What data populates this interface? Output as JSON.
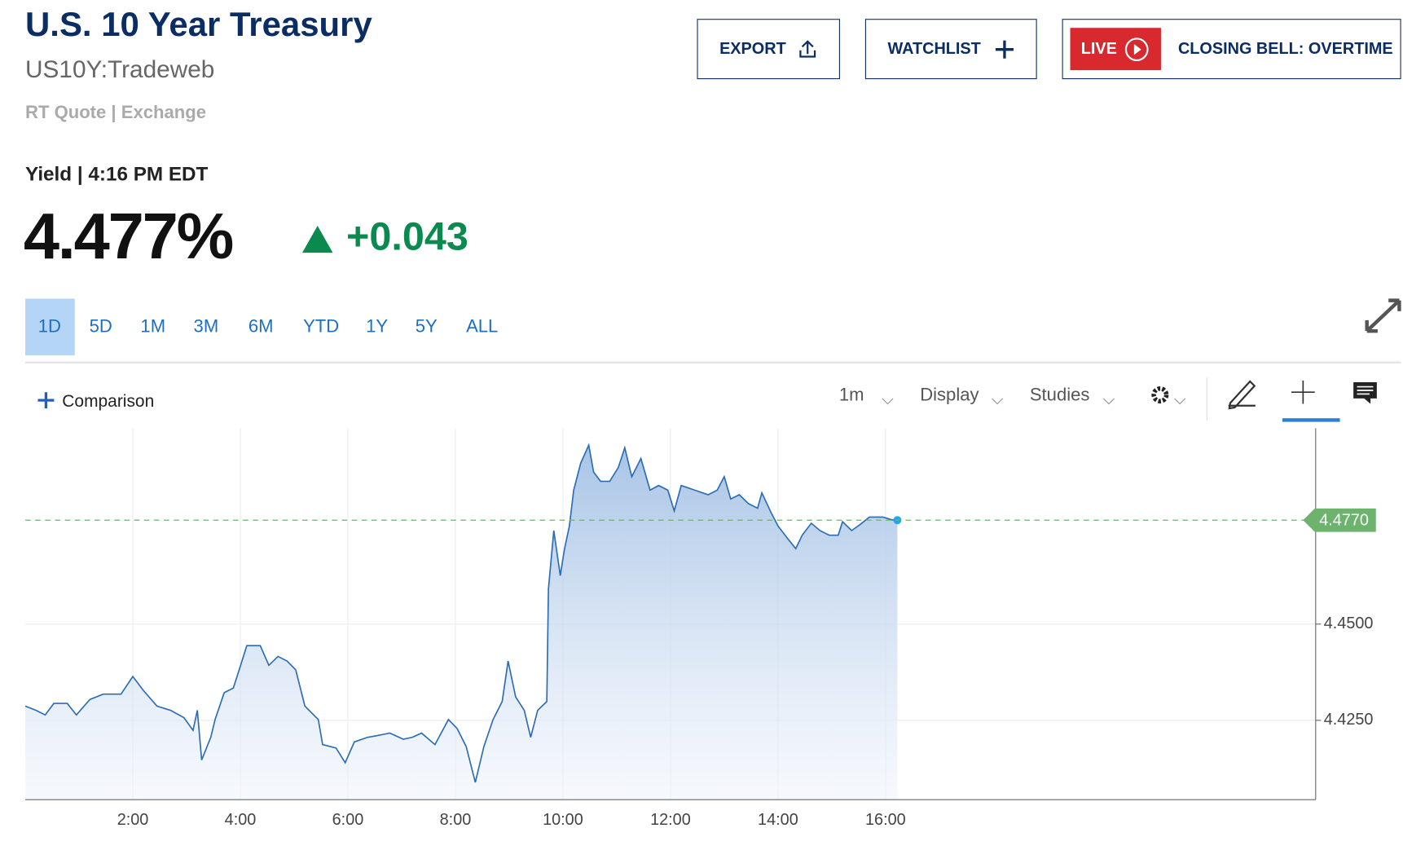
{
  "header": {
    "title": "U.S. 10 Year Treasury",
    "symbol": "US10Y:Tradeweb",
    "quote_type": "RT Quote | Exchange",
    "time_line": "Yield | 4:16 PM EDT",
    "price": "4.477%",
    "change": "+0.043"
  },
  "buttons": [
    "EXPORT",
    "WATCHLIST",
    "LIVE",
    "CLOSING BELL: OVERTIME"
  ],
  "ranges": {
    "items": [
      "1D",
      "5D",
      "1M",
      "3M",
      "6M",
      "YTD",
      "1Y",
      "5Y",
      "ALL"
    ],
    "selected": "1D"
  },
  "toolbar": {
    "comparison": "Comparison",
    "interval": "1m",
    "display": "Display",
    "studies": "Studies"
  },
  "chart_data": {
    "type": "area",
    "xlim": [
      0,
      24
    ],
    "ylim": [
      4.4044,
      4.5009
    ],
    "xticks": [
      {
        "value": 2,
        "label": "2:00"
      },
      {
        "value": 4,
        "label": "4:00"
      },
      {
        "value": 6,
        "label": "6:00"
      },
      {
        "value": 8,
        "label": "8:00"
      },
      {
        "value": 10,
        "label": "10:00"
      },
      {
        "value": 12,
        "label": "12:00"
      },
      {
        "value": 14,
        "label": "14:00"
      },
      {
        "value": 16,
        "label": "16:00"
      }
    ],
    "yticks": [
      {
        "value": 4.45,
        "label": "4.4500"
      },
      {
        "value": 4.425,
        "label": "4.4250"
      }
    ],
    "grid": true,
    "current": {
      "value": 4.477,
      "label": "4.4770",
      "color": "#6db36d"
    },
    "x": [
      0,
      0.2,
      0.37,
      0.53,
      0.78,
      0.95,
      1.2,
      1.45,
      1.78,
      2,
      2.2,
      2.45,
      2.7,
      2.95,
      3.12,
      3.2,
      3.28,
      3.45,
      3.53,
      3.7,
      3.87,
      4.03,
      4.12,
      4.37,
      4.53,
      4.7,
      4.87,
      5.03,
      5.2,
      5.45,
      5.53,
      5.78,
      5.95,
      6.12,
      6.37,
      6.53,
      6.78,
      7.03,
      7.2,
      7.37,
      7.62,
      7.87,
      8.03,
      8.2,
      8.37,
      8.53,
      8.7,
      8.87,
      8.98,
      9.12,
      9.28,
      9.4,
      9.53,
      9.7,
      9.73,
      9.83,
      9.95,
      10.03,
      10.12,
      10.2,
      10.33,
      10.48,
      10.57,
      10.7,
      10.87,
      11.03,
      11.15,
      11.28,
      11.45,
      11.62,
      11.78,
      11.95,
      12.07,
      12.2,
      12.45,
      12.7,
      12.87,
      13,
      13.12,
      13.28,
      13.45,
      13.62,
      13.7,
      13.87,
      14,
      14.17,
      14.33,
      14.45,
      14.62,
      14.78,
      14.95,
      15.12,
      15.2,
      15.37,
      15.53,
      15.7,
      15.95,
      16.12,
      16.22
    ],
    "series": [
      {
        "color": "#2b6cb3",
        "values": [
          4.4287,
          4.4276,
          4.4264,
          4.4294,
          4.4294,
          4.4264,
          4.4304,
          4.4318,
          4.4318,
          4.4364,
          4.4327,
          4.4287,
          4.4276,
          4.4257,
          4.4224,
          4.4276,
          4.4147,
          4.4206,
          4.4252,
          4.4322,
          4.4334,
          4.4404,
          4.4444,
          4.4444,
          4.4393,
          4.4416,
          4.4404,
          4.4381,
          4.4287,
          4.4252,
          4.4187,
          4.4178,
          4.414,
          4.4194,
          4.4206,
          4.421,
          4.4217,
          4.4201,
          4.4206,
          4.4217,
          4.4187,
          4.4252,
          4.4229,
          4.4182,
          4.4089,
          4.4182,
          4.4252,
          4.4299,
          4.4404,
          4.4311,
          4.4276,
          4.4206,
          4.4276,
          4.4299,
          4.4591,
          4.4743,
          4.4626,
          4.4696,
          4.4755,
          4.4848,
          4.4918,
          4.4965,
          4.4895,
          4.4871,
          4.4871,
          4.4907,
          4.4958,
          4.4883,
          4.493,
          4.4848,
          4.486,
          4.4848,
          4.4794,
          4.486,
          4.4848,
          4.4836,
          4.4848,
          4.4883,
          4.4825,
          4.4836,
          4.4813,
          4.4801,
          4.4841,
          4.479,
          4.4755,
          4.4724,
          4.4696,
          4.4731,
          4.4762,
          4.4743,
          4.4731,
          4.4731,
          4.4766,
          4.4743,
          4.4759,
          4.4778,
          4.4778,
          4.4771,
          4.477
        ]
      }
    ]
  }
}
